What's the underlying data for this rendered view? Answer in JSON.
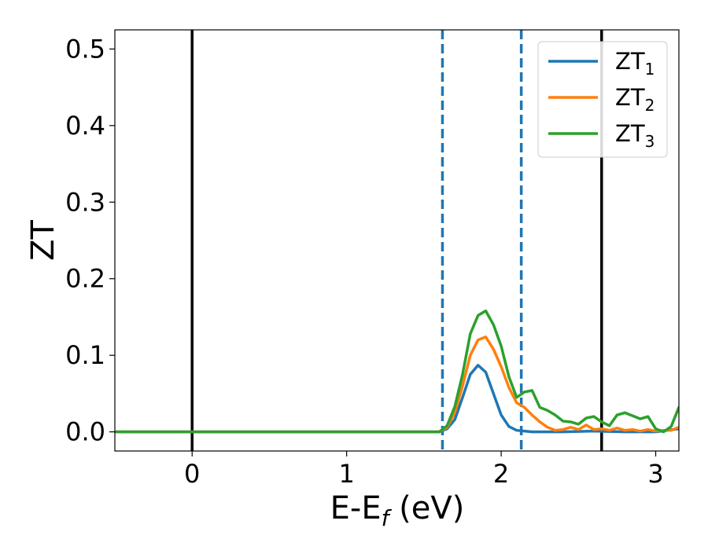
{
  "chart_data": {
    "type": "line",
    "xlabel_main": "E-E",
    "xlabel_sub": "f",
    "xlabel_tail": " (eV)",
    "ylabel": "ZT",
    "xlim": [
      -0.5,
      3.15
    ],
    "ylim": [
      -0.025,
      0.525
    ],
    "x_ticks": [
      0,
      1,
      2,
      3
    ],
    "x_tick_labels": [
      "0",
      "1",
      "2",
      "3"
    ],
    "y_ticks": [
      0.0,
      0.1,
      0.2,
      0.3,
      0.4,
      0.5
    ],
    "y_tick_labels": [
      "0.0",
      "0.1",
      "0.2",
      "0.3",
      "0.4",
      "0.5"
    ],
    "grid": false,
    "legend_position": "top-right",
    "vertical_lines": [
      {
        "x": 0.0,
        "style": "solid",
        "color": "#000000"
      },
      {
        "x": 2.65,
        "style": "solid",
        "color": "#000000"
      },
      {
        "x": 1.62,
        "style": "dashed",
        "color": "#1f77b4"
      },
      {
        "x": 2.13,
        "style": "dashed",
        "color": "#1f77b4"
      }
    ],
    "series": [
      {
        "name": "ZT",
        "name_sub": "1",
        "color": "#1f77b4",
        "x": [
          -0.5,
          1.6,
          1.65,
          1.7,
          1.75,
          1.8,
          1.85,
          1.9,
          1.95,
          2.0,
          2.05,
          2.1,
          2.15,
          2.2,
          2.4,
          2.6,
          2.8,
          3.0,
          3.15
        ],
        "y": [
          0.0,
          0.0,
          0.004,
          0.016,
          0.045,
          0.075,
          0.087,
          0.078,
          0.05,
          0.022,
          0.007,
          0.002,
          0.001,
          0.0,
          0.0,
          0.001,
          0.0,
          0.0,
          0.004
        ]
      },
      {
        "name": "ZT",
        "name_sub": "2",
        "color": "#ff7f0e",
        "x": [
          -0.5,
          1.6,
          1.65,
          1.7,
          1.75,
          1.8,
          1.85,
          1.9,
          1.95,
          2.0,
          2.05,
          2.1,
          2.15,
          2.2,
          2.25,
          2.3,
          2.35,
          2.4,
          2.45,
          2.5,
          2.55,
          2.6,
          2.65,
          2.7,
          2.75,
          2.8,
          2.85,
          2.9,
          2.95,
          3.0,
          3.05,
          3.1,
          3.15
        ],
        "y": [
          0.0,
          0.0,
          0.006,
          0.025,
          0.06,
          0.1,
          0.12,
          0.124,
          0.108,
          0.085,
          0.058,
          0.038,
          0.032,
          0.022,
          0.013,
          0.006,
          0.002,
          0.003,
          0.006,
          0.003,
          0.009,
          0.003,
          0.004,
          0.002,
          0.005,
          0.002,
          0.003,
          0.001,
          0.003,
          0.001,
          0.002,
          0.002,
          0.006
        ]
      },
      {
        "name": "ZT",
        "name_sub": "3",
        "color": "#2ca02c",
        "x": [
          -0.5,
          1.6,
          1.65,
          1.7,
          1.75,
          1.8,
          1.85,
          1.9,
          1.95,
          2.0,
          2.05,
          2.1,
          2.15,
          2.2,
          2.25,
          2.3,
          2.35,
          2.4,
          2.45,
          2.5,
          2.55,
          2.6,
          2.65,
          2.7,
          2.75,
          2.8,
          2.85,
          2.9,
          2.95,
          3.0,
          3.05,
          3.1,
          3.15
        ],
        "y": [
          0.0,
          0.0,
          0.008,
          0.033,
          0.075,
          0.128,
          0.152,
          0.158,
          0.14,
          0.112,
          0.072,
          0.045,
          0.052,
          0.054,
          0.032,
          0.028,
          0.022,
          0.014,
          0.013,
          0.01,
          0.018,
          0.02,
          0.013,
          0.008,
          0.022,
          0.025,
          0.021,
          0.017,
          0.02,
          0.004,
          0.0,
          0.007,
          0.032
        ]
      }
    ]
  }
}
